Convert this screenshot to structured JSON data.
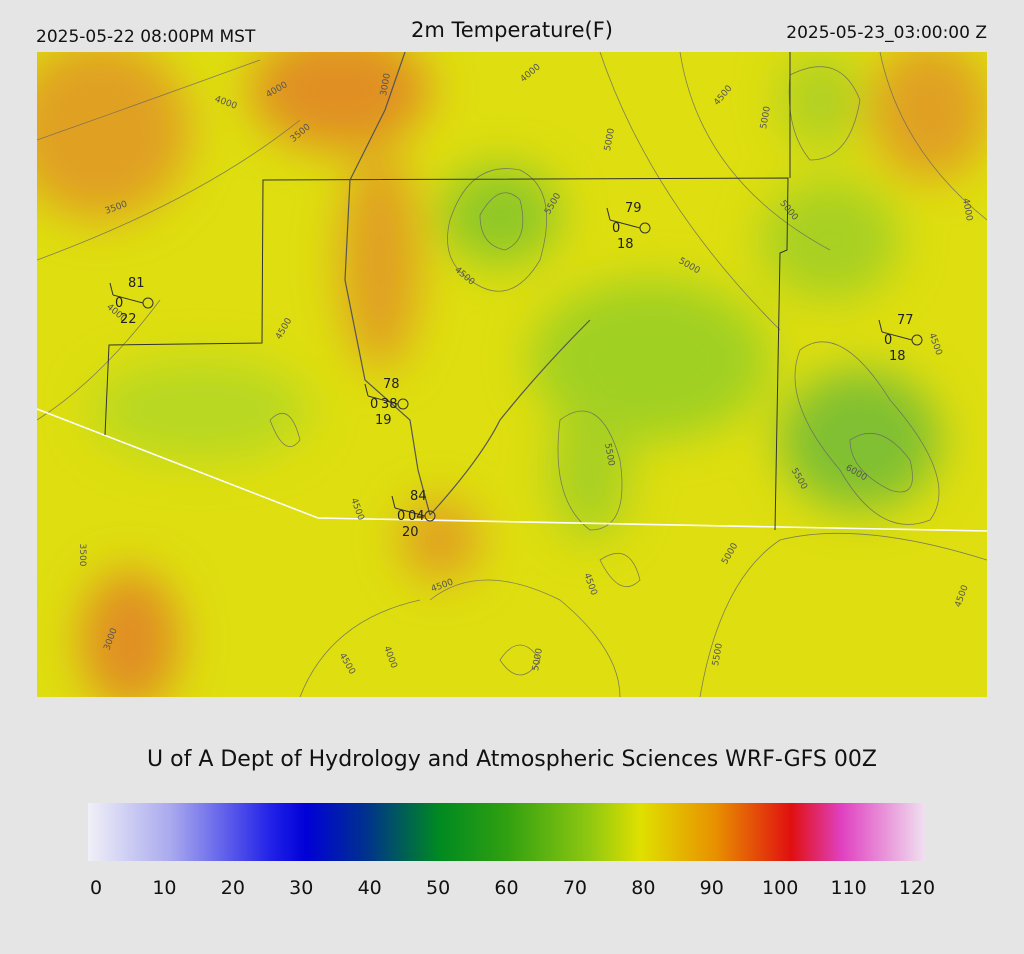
{
  "header": {
    "left": "2025-05-22 08:00PM MST",
    "title": "2m Temperature(F)",
    "right": "2025-05-23_03:00:00 Z"
  },
  "map": {
    "stations": [
      {
        "temp": "81",
        "code": "0",
        "dew": "22"
      },
      {
        "temp": "79",
        "code": "0",
        "dew": "18"
      },
      {
        "temp": "77",
        "code": "0",
        "dew": "18"
      },
      {
        "temp": "78",
        "code": "0",
        "dew": "19",
        "extra": "38"
      },
      {
        "temp": "84",
        "code": "0",
        "dew": "20",
        "extra": "04"
      }
    ],
    "contour_labels": [
      "4000",
      "4000",
      "3500",
      "3000",
      "4000",
      "3500",
      "5500",
      "5000",
      "4500",
      "5000",
      "5000",
      "5000",
      "4000",
      "4500",
      "4500",
      "4000",
      "4500",
      "5500",
      "6000",
      "5500",
      "4500",
      "3500",
      "5000",
      "4500",
      "4500",
      "4500",
      "3000",
      "5000",
      "5500",
      "4500",
      "4000"
    ]
  },
  "footer": {
    "credit": "U of A Dept of Hydrology and Atmospheric Sciences WRF-GFS 00Z"
  },
  "colorbar": {
    "ticks": [
      "0",
      "10",
      "20",
      "30",
      "40",
      "50",
      "60",
      "70",
      "80",
      "90",
      "100",
      "110",
      "120"
    ]
  }
}
